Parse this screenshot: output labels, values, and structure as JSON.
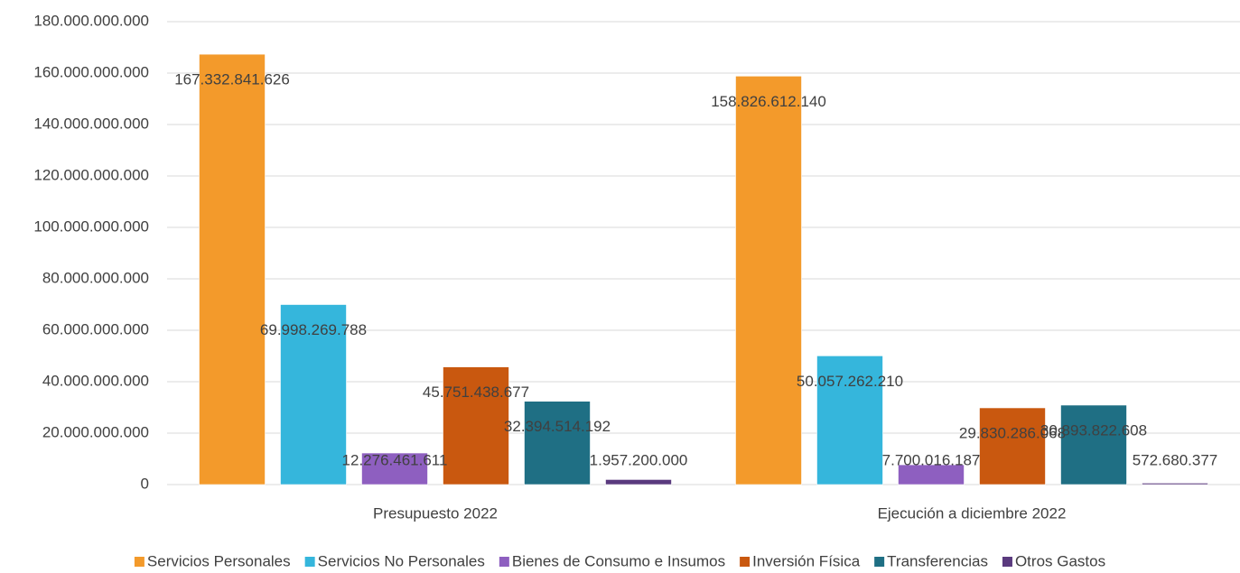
{
  "chart_data": {
    "type": "bar",
    "categories": [
      "Presupuesto 2022",
      "Ejecución a diciembre 2022"
    ],
    "series": [
      {
        "name": "Servicios Personales",
        "color": "#f39a2b",
        "values": [
          167332841626,
          158826612140
        ],
        "value_labels": [
          "167.332.841.626",
          "158.826.612.140"
        ]
      },
      {
        "name": "Servicios No Personales",
        "color": "#35b6dc",
        "values": [
          69998269788,
          50057262210
        ],
        "value_labels": [
          "69.998.269.788",
          "50.057.262.210"
        ]
      },
      {
        "name": "Bienes de Consumo e Insumos",
        "color": "#8e5fc0",
        "values": [
          12276461611,
          7700016187
        ],
        "value_labels": [
          "12.276.461.611",
          "7.700.016.187"
        ]
      },
      {
        "name": "Inversión Física",
        "color": "#c9580f",
        "values": [
          45751438677,
          29830286068
        ],
        "value_labels": [
          "45.751.438.677",
          "29.830.286.068"
        ]
      },
      {
        "name": "Transferencias",
        "color": "#1f6f84",
        "values": [
          32394514192,
          30893822608
        ],
        "value_labels": [
          "32.394.514.192",
          "30.893.822.608"
        ]
      },
      {
        "name": "Otros Gastos",
        "color": "#5a3a7e",
        "values": [
          1957200000,
          572680377
        ],
        "value_labels": [
          "1.957.200.000",
          "572.680.377"
        ]
      }
    ],
    "ylim": [
      0,
      180000000000
    ],
    "yticks": [
      0,
      {
        "value": 20000000000,
        "label": "20.000.000.000"
      },
      {
        "value": 40000000000,
        "label": "40.000.000.000"
      },
      {
        "value": 60000000000,
        "label": "60.000.000.000"
      },
      {
        "value": 80000000000,
        "label": "80.000.000.000"
      },
      {
        "value": 100000000000,
        "label": "100.000.000.000"
      },
      {
        "value": 120000000000,
        "label": "120.000.000.000"
      },
      {
        "value": 140000000000,
        "label": "140.000.000.000"
      },
      {
        "value": 160000000000,
        "label": "160.000.000.000"
      },
      {
        "value": 180000000000,
        "label": "180.000.000.000"
      }
    ],
    "grid": true,
    "legend": "bottom"
  }
}
